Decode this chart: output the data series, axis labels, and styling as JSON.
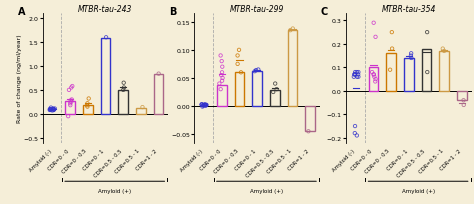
{
  "background_color": "#f5eed8",
  "panels": [
    {
      "label": "A",
      "title": "MTBR-tau-243",
      "ylabel": "Rate of change (ng/ml/year)",
      "ylim": [
        -0.6,
        2.1
      ],
      "yticks": [
        -0.5,
        0.0,
        0.5,
        1.0,
        1.5,
        2.0
      ],
      "categories": [
        "Amyloid (-)",
        "CDR=0 - 0",
        "CDR=0 - 0.5",
        "CDR=0 - 1",
        "CDR=0.5 - 0.5",
        "CDR=0.5 - 1",
        "CDR=1 - 2"
      ],
      "bar_heights": [
        null,
        0.27,
        0.19,
        1.59,
        0.49,
        0.13,
        0.84
      ],
      "bar_colors": [
        "#3333cc",
        "#cc33cc",
        "#cc7700",
        "#3333cc",
        "#333333",
        "#cc9944",
        "#aa6688"
      ],
      "scatter_data": [
        [
          0.09,
          0.1,
          0.11,
          0.08,
          0.07,
          0.13,
          0.1,
          0.09,
          0.08,
          0.09,
          0.1,
          0.11,
          0.08
        ],
        [
          0.22,
          0.3,
          0.28,
          0.55,
          0.5,
          0.58,
          0.25,
          0.18,
          -0.05
        ],
        [
          0.18,
          0.32,
          0.22,
          0.15
        ],
        [
          1.6
        ],
        [
          0.5,
          0.55,
          0.65
        ],
        [
          0.14
        ],
        [
          0.84
        ]
      ],
      "scatter_colors": [
        "#3333cc",
        "#cc33cc",
        "#cc7700",
        "#3333cc",
        "#333333",
        "#cc9944",
        "#aa6688"
      ]
    },
    {
      "label": "B",
      "title": "MTBR-tau-299",
      "ylabel": "Rate of change (ng/ml/year)",
      "ylim": [
        -0.065,
        0.165
      ],
      "yticks": [
        -0.05,
        0.0,
        0.05,
        0.1,
        0.15
      ],
      "categories": [
        "Amyloid (-)",
        "CDR=0 - 0",
        "CDR=0 - 0.5",
        "CDR=0 - 1",
        "CDR=0.5 - 0.5",
        "CDR=0.5 - 1",
        "CDR=1 - 2"
      ],
      "bar_heights": [
        null,
        0.038,
        0.06,
        0.063,
        0.028,
        0.135,
        -0.045
      ],
      "bar_colors": [
        "#3333cc",
        "#cc33cc",
        "#cc7700",
        "#3333cc",
        "#333333",
        "#cc9944",
        "#aa6688"
      ],
      "scatter_data": [
        [
          0.001,
          0.002,
          -0.001,
          0.003,
          0.001,
          0.002,
          0.003,
          0.001,
          0.002,
          0.001,
          0.002,
          0.003,
          0.001,
          0.002
        ],
        [
          0.04,
          0.05,
          0.06,
          0.07,
          0.08,
          0.09,
          0.03,
          0.045,
          0.055
        ],
        [
          0.06,
          0.1,
          0.09,
          0.075
        ],
        [
          0.062,
          0.065,
          0.064
        ],
        [
          0.025,
          0.03,
          0.04
        ],
        [
          0.135,
          0.138
        ],
        [
          -0.045
        ]
      ],
      "scatter_colors": [
        "#3333cc",
        "#cc33cc",
        "#cc7700",
        "#3333cc",
        "#333333",
        "#cc9944",
        "#aa6688"
      ]
    },
    {
      "label": "C",
      "title": "MTBR-tau-354",
      "ylabel": "Rate of change (ng/ml/year)",
      "ylim": [
        -0.22,
        0.33
      ],
      "yticks": [
        -0.2,
        -0.1,
        0.0,
        0.1,
        0.2,
        0.3
      ],
      "categories": [
        "Amyloid (-)",
        "CDR=0 - 0",
        "CDR=0 - 0.5",
        "CDR=0 - 1",
        "CDR=0.5 - 0.5",
        "CDR=0.5 - 1",
        "CDR=1 - 2"
      ],
      "bar_heights": [
        null,
        0.1,
        0.16,
        0.14,
        0.18,
        0.17,
        -0.04
      ],
      "bar_colors": [
        "#3333cc",
        "#cc33cc",
        "#cc7700",
        "#3333cc",
        "#333333",
        "#cc9944",
        "#aa6688"
      ],
      "scatter_data": [
        [
          0.07,
          0.08,
          0.06,
          0.07,
          0.07,
          0.06,
          0.08,
          0.07,
          0.06,
          0.08,
          -0.18,
          -0.15,
          -0.19
        ],
        [
          0.05,
          0.07,
          0.08,
          0.06,
          0.07,
          0.29,
          0.23,
          0.04
        ],
        [
          0.09,
          0.25,
          0.18
        ],
        [
          0.14,
          0.15,
          0.16
        ],
        [
          0.08,
          0.25
        ],
        [
          0.18,
          0.17
        ],
        [
          -0.04,
          -0.06
        ]
      ],
      "scatter_colors": [
        "#3333cc",
        "#cc33cc",
        "#cc7700",
        "#3333cc",
        "#333333",
        "#cc9944",
        "#aa6688"
      ]
    }
  ],
  "bar_width": 0.55,
  "scatter_size": 6,
  "scatter_alpha": 0.85,
  "title_fontsize": 5.5,
  "label_fontsize": 4.5,
  "tick_fontsize": 4.5,
  "cat_fontsize": 3.8,
  "amyloid_label_fontsize": 4.0
}
